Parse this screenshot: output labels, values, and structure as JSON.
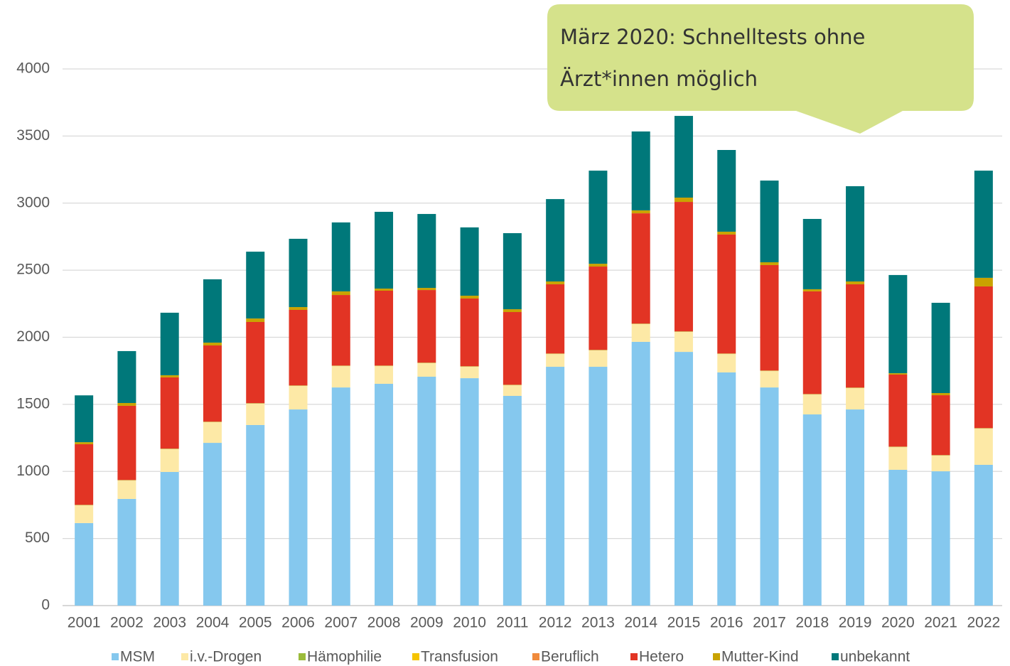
{
  "chart_data": {
    "type": "stacked_bar",
    "annotation": [
      "März 2020: Schnelltests ohne",
      "Ärzt*innen möglich"
    ],
    "categories": [
      "2001",
      "2002",
      "2003",
      "2004",
      "2005",
      "2006",
      "2007",
      "2008",
      "2009",
      "2010",
      "2011",
      "2012",
      "2013",
      "2014",
      "2015",
      "2016",
      "2017",
      "2018",
      "2019",
      "2020",
      "2021",
      "2022"
    ],
    "series": [
      {
        "name": "MSM",
        "color": "#85c8ee",
        "values": [
          615,
          795,
          996,
          1213,
          1346,
          1462,
          1626,
          1653,
          1706,
          1695,
          1563,
          1780,
          1780,
          1966,
          1891,
          1738,
          1626,
          1425,
          1462,
          1012,
          1001,
          1049
        ]
      },
      {
        "name": "i.v.-Drogen",
        "color": "#fde9a6",
        "values": [
          132,
          137,
          170,
          154,
          159,
          175,
          159,
          132,
          101,
          85,
          79,
          95,
          122,
          132,
          149,
          137,
          122,
          148,
          159,
          169,
          117,
          270
        ]
      },
      {
        "name": "Hämophilie",
        "color": "#9bbb3b",
        "values": [
          2,
          2,
          2,
          2,
          2,
          2,
          2,
          2,
          2,
          2,
          2,
          2,
          2,
          2,
          2,
          2,
          2,
          2,
          2,
          2,
          2,
          2
        ]
      },
      {
        "name": "Transfusion",
        "color": "#f5c400",
        "values": [
          1,
          1,
          1,
          1,
          1,
          1,
          1,
          1,
          1,
          1,
          1,
          1,
          1,
          1,
          1,
          1,
          1,
          1,
          1,
          1,
          1,
          1
        ]
      },
      {
        "name": "Beruflich",
        "color": "#f08a3c",
        "values": [
          1,
          1,
          1,
          1,
          1,
          1,
          1,
          1,
          1,
          1,
          1,
          1,
          1,
          1,
          1,
          1,
          1,
          1,
          1,
          1,
          1,
          1
        ]
      },
      {
        "name": "Hetero",
        "color": "#e23424",
        "values": [
          452,
          553,
          531,
          568,
          605,
          563,
          526,
          558,
          541,
          505,
          542,
          516,
          621,
          822,
          965,
          887,
          786,
          765,
          770,
          537,
          446,
          1056
        ]
      },
      {
        "name": "Mutter-Kind",
        "color": "#c9a300",
        "values": [
          15,
          21,
          16,
          21,
          26,
          21,
          27,
          16,
          16,
          21,
          21,
          21,
          21,
          22,
          32,
          21,
          21,
          16,
          21,
          10,
          16,
          64
        ]
      },
      {
        "name": "unbekannt",
        "color": "#00787a",
        "values": [
          349,
          387,
          466,
          472,
          498,
          509,
          514,
          572,
          551,
          509,
          567,
          614,
          694,
          588,
          609,
          609,
          609,
          524,
          710,
          732,
          673,
          799
        ]
      }
    ],
    "ylim": [
      0,
      4000
    ],
    "yticks": [
      0,
      500,
      1000,
      1500,
      2000,
      2500,
      3000,
      3500,
      4000
    ],
    "grid": true
  }
}
